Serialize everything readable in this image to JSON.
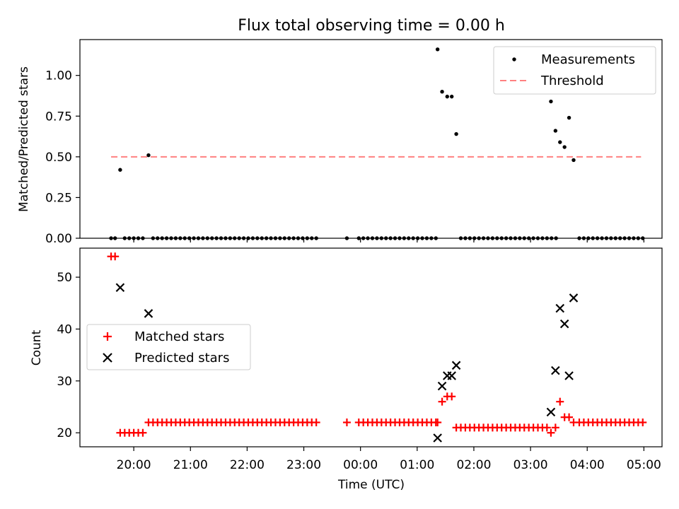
{
  "title": "Flux total observing time = 0.00 h",
  "xlabel": "Time (UTC)",
  "x_tick_labels": [
    "20:00",
    "21:00",
    "22:00",
    "23:00",
    "00:00",
    "01:00",
    "02:00",
    "03:00",
    "04:00",
    "05:00"
  ],
  "colors": {
    "measurement": "#000000",
    "threshold": "#ff8080",
    "matched": "#ff0000",
    "predicted": "#000000"
  },
  "chart_data": [
    {
      "type": "scatter",
      "panel": "top",
      "xlabel": "",
      "ylabel": "Matched/Predicted stars",
      "x_unit": "hours since 19:00 UTC",
      "xlim": [
        0.05,
        10.32
      ],
      "ylim": [
        0.0,
        1.22
      ],
      "y_ticks": [
        "0.00",
        "0.25",
        "0.50",
        "0.75",
        "1.00"
      ],
      "legend_position": "top-right",
      "threshold": {
        "name": "Threshold",
        "y": 0.5,
        "x_start": 0.6,
        "x_end": 9.95
      },
      "series": [
        {
          "name": "Measurements",
          "points": [
            [
              0.6,
              0
            ],
            [
              0.67,
              0
            ],
            [
              0.76,
              0.42
            ],
            [
              0.84,
              0
            ],
            [
              0.92,
              0
            ],
            [
              1.0,
              0
            ],
            [
              1.08,
              0
            ],
            [
              1.16,
              0
            ],
            [
              1.26,
              0.51
            ],
            [
              1.34,
              0
            ],
            [
              1.42,
              0
            ],
            [
              1.5,
              0
            ],
            [
              1.58,
              0
            ],
            [
              1.66,
              0
            ],
            [
              1.74,
              0
            ],
            [
              1.82,
              0
            ],
            [
              1.9,
              0
            ],
            [
              1.98,
              0
            ],
            [
              2.06,
              0
            ],
            [
              2.14,
              0
            ],
            [
              2.22,
              0
            ],
            [
              2.3,
              0
            ],
            [
              2.38,
              0
            ],
            [
              2.46,
              0
            ],
            [
              2.54,
              0
            ],
            [
              2.62,
              0
            ],
            [
              2.7,
              0
            ],
            [
              2.78,
              0
            ],
            [
              2.86,
              0
            ],
            [
              2.94,
              0
            ],
            [
              3.02,
              0
            ],
            [
              3.1,
              0
            ],
            [
              3.18,
              0
            ],
            [
              3.26,
              0
            ],
            [
              3.34,
              0
            ],
            [
              3.42,
              0
            ],
            [
              3.5,
              0
            ],
            [
              3.58,
              0
            ],
            [
              3.66,
              0
            ],
            [
              3.74,
              0
            ],
            [
              3.82,
              0
            ],
            [
              3.9,
              0
            ],
            [
              3.98,
              0
            ],
            [
              4.06,
              0
            ],
            [
              4.14,
              0
            ],
            [
              4.22,
              0
            ],
            [
              4.76,
              0
            ],
            [
              4.97,
              0
            ],
            [
              5.05,
              0
            ],
            [
              5.13,
              0
            ],
            [
              5.21,
              0
            ],
            [
              5.29,
              0
            ],
            [
              5.37,
              0
            ],
            [
              5.45,
              0
            ],
            [
              5.53,
              0
            ],
            [
              5.61,
              0
            ],
            [
              5.69,
              0
            ],
            [
              5.77,
              0
            ],
            [
              5.85,
              0
            ],
            [
              5.93,
              0
            ],
            [
              6.01,
              0
            ],
            [
              6.09,
              0
            ],
            [
              6.17,
              0
            ],
            [
              6.25,
              0
            ],
            [
              6.33,
              0
            ],
            [
              6.36,
              1.16
            ],
            [
              6.44,
              0.9
            ],
            [
              6.53,
              0.87
            ],
            [
              6.61,
              0.87
            ],
            [
              6.69,
              0.64
            ],
            [
              6.77,
              0
            ],
            [
              6.85,
              0
            ],
            [
              6.93,
              0
            ],
            [
              7.01,
              0
            ],
            [
              7.09,
              0
            ],
            [
              7.17,
              0
            ],
            [
              7.25,
              0
            ],
            [
              7.33,
              0
            ],
            [
              7.41,
              0
            ],
            [
              7.49,
              0
            ],
            [
              7.57,
              0
            ],
            [
              7.65,
              0
            ],
            [
              7.73,
              0
            ],
            [
              7.81,
              0
            ],
            [
              7.89,
              0
            ],
            [
              7.97,
              0
            ],
            [
              8.05,
              0
            ],
            [
              8.13,
              0
            ],
            [
              8.21,
              0
            ],
            [
              8.29,
              0
            ],
            [
              8.37,
              0
            ],
            [
              8.45,
              0
            ],
            [
              8.36,
              0.84
            ],
            [
              8.44,
              0.66
            ],
            [
              8.52,
              0.59
            ],
            [
              8.6,
              0.56
            ],
            [
              8.68,
              0.74
            ],
            [
              8.76,
              0.48
            ],
            [
              8.86,
              0
            ],
            [
              8.94,
              0
            ],
            [
              9.02,
              0
            ],
            [
              9.1,
              0
            ],
            [
              9.18,
              0
            ],
            [
              9.26,
              0
            ],
            [
              9.34,
              0
            ],
            [
              9.42,
              0
            ],
            [
              9.5,
              0
            ],
            [
              9.58,
              0
            ],
            [
              9.66,
              0
            ],
            [
              9.74,
              0
            ],
            [
              9.82,
              0
            ],
            [
              9.9,
              0
            ],
            [
              9.98,
              0
            ]
          ]
        }
      ]
    },
    {
      "type": "scatter",
      "panel": "bottom",
      "xlabel": "Time (UTC)",
      "ylabel": "Count",
      "x_unit": "hours since 19:00 UTC",
      "xlim": [
        0.05,
        10.32
      ],
      "ylim": [
        17.3,
        55.6
      ],
      "y_ticks": [
        "20",
        "30",
        "40",
        "50"
      ],
      "legend_position": "center-left",
      "series": [
        {
          "name": "Matched stars",
          "marker": "+",
          "points": [
            [
              0.6,
              54
            ],
            [
              0.67,
              54
            ],
            [
              0.76,
              20
            ],
            [
              0.84,
              20
            ],
            [
              0.92,
              20
            ],
            [
              1.0,
              20
            ],
            [
              1.08,
              20
            ],
            [
              1.16,
              20
            ],
            [
              1.26,
              22
            ],
            [
              1.34,
              22
            ],
            [
              1.42,
              22
            ],
            [
              1.5,
              22
            ],
            [
              1.58,
              22
            ],
            [
              1.66,
              22
            ],
            [
              1.74,
              22
            ],
            [
              1.82,
              22
            ],
            [
              1.9,
              22
            ],
            [
              1.98,
              22
            ],
            [
              2.06,
              22
            ],
            [
              2.14,
              22
            ],
            [
              2.22,
              22
            ],
            [
              2.3,
              22
            ],
            [
              2.38,
              22
            ],
            [
              2.46,
              22
            ],
            [
              2.54,
              22
            ],
            [
              2.62,
              22
            ],
            [
              2.7,
              22
            ],
            [
              2.78,
              22
            ],
            [
              2.86,
              22
            ],
            [
              2.94,
              22
            ],
            [
              3.02,
              22
            ],
            [
              3.1,
              22
            ],
            [
              3.18,
              22
            ],
            [
              3.26,
              22
            ],
            [
              3.34,
              22
            ],
            [
              3.42,
              22
            ],
            [
              3.5,
              22
            ],
            [
              3.58,
              22
            ],
            [
              3.66,
              22
            ],
            [
              3.74,
              22
            ],
            [
              3.82,
              22
            ],
            [
              3.9,
              22
            ],
            [
              3.98,
              22
            ],
            [
              4.06,
              22
            ],
            [
              4.14,
              22
            ],
            [
              4.22,
              22
            ],
            [
              4.76,
              22
            ],
            [
              4.97,
              22
            ],
            [
              5.05,
              22
            ],
            [
              5.13,
              22
            ],
            [
              5.21,
              22
            ],
            [
              5.29,
              22
            ],
            [
              5.37,
              22
            ],
            [
              5.45,
              22
            ],
            [
              5.53,
              22
            ],
            [
              5.61,
              22
            ],
            [
              5.69,
              22
            ],
            [
              5.77,
              22
            ],
            [
              5.85,
              22
            ],
            [
              5.93,
              22
            ],
            [
              6.01,
              22
            ],
            [
              6.09,
              22
            ],
            [
              6.17,
              22
            ],
            [
              6.25,
              22
            ],
            [
              6.33,
              22
            ],
            [
              6.36,
              22
            ],
            [
              6.44,
              26
            ],
            [
              6.53,
              27
            ],
            [
              6.61,
              27
            ],
            [
              6.69,
              21
            ],
            [
              6.77,
              21
            ],
            [
              6.85,
              21
            ],
            [
              6.93,
              21
            ],
            [
              7.01,
              21
            ],
            [
              7.09,
              21
            ],
            [
              7.17,
              21
            ],
            [
              7.25,
              21
            ],
            [
              7.33,
              21
            ],
            [
              7.41,
              21
            ],
            [
              7.49,
              21
            ],
            [
              7.57,
              21
            ],
            [
              7.65,
              21
            ],
            [
              7.73,
              21
            ],
            [
              7.81,
              21
            ],
            [
              7.89,
              21
            ],
            [
              7.97,
              21
            ],
            [
              8.05,
              21
            ],
            [
              8.13,
              21
            ],
            [
              8.21,
              21
            ],
            [
              8.29,
              21
            ],
            [
              8.36,
              20
            ],
            [
              8.44,
              21
            ],
            [
              8.52,
              26
            ],
            [
              8.6,
              23
            ],
            [
              8.68,
              23
            ],
            [
              8.76,
              22
            ],
            [
              8.86,
              22
            ],
            [
              8.94,
              22
            ],
            [
              9.02,
              22
            ],
            [
              9.1,
              22
            ],
            [
              9.18,
              22
            ],
            [
              9.26,
              22
            ],
            [
              9.34,
              22
            ],
            [
              9.42,
              22
            ],
            [
              9.5,
              22
            ],
            [
              9.58,
              22
            ],
            [
              9.66,
              22
            ],
            [
              9.74,
              22
            ],
            [
              9.82,
              22
            ],
            [
              9.9,
              22
            ],
            [
              9.98,
              22
            ]
          ]
        },
        {
          "name": "Predicted stars",
          "marker": "x",
          "points": [
            [
              0.76,
              48
            ],
            [
              1.26,
              43
            ],
            [
              6.36,
              19
            ],
            [
              6.44,
              29
            ],
            [
              6.53,
              31
            ],
            [
              6.61,
              31
            ],
            [
              6.69,
              33
            ],
            [
              8.36,
              24
            ],
            [
              8.44,
              32
            ],
            [
              8.52,
              44
            ],
            [
              8.6,
              41
            ],
            [
              8.68,
              31
            ],
            [
              8.76,
              46
            ]
          ]
        }
      ]
    }
  ]
}
